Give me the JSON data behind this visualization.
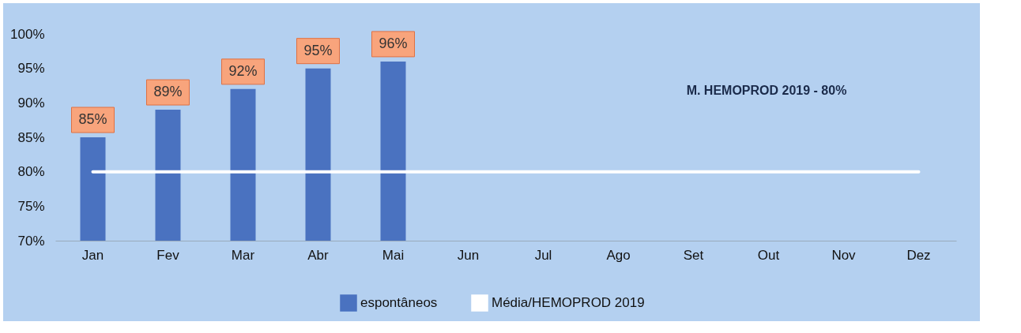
{
  "chart_data": {
    "type": "bar",
    "categories": [
      "Jan",
      "Fev",
      "Mar",
      "Abr",
      "Mai",
      "Jun",
      "Jul",
      "Ago",
      "Set",
      "Out",
      "Nov",
      "Dez"
    ],
    "series": [
      {
        "name": "espontâneos",
        "color": "#4a72c0",
        "values": [
          85,
          89,
          92,
          95,
          96,
          null,
          null,
          null,
          null,
          null,
          null,
          null
        ],
        "value_labels": [
          "85%",
          "89%",
          "92%",
          "95%",
          "96%",
          null,
          null,
          null,
          null,
          null,
          null,
          null
        ]
      },
      {
        "name": "Média/HEMOPROD 2019",
        "type": "line",
        "color": "#ffffff",
        "values": [
          80,
          80,
          80,
          80,
          80,
          80,
          80,
          80,
          80,
          80,
          80,
          80
        ]
      }
    ],
    "ylim": [
      70,
      100
    ],
    "yticks": [
      {
        "value": 70,
        "label": "70%"
      },
      {
        "value": 75,
        "label": "75%"
      },
      {
        "value": 80,
        "label": "80%"
      },
      {
        "value": 85,
        "label": "85%"
      },
      {
        "value": 90,
        "label": "90%"
      },
      {
        "value": 95,
        "label": "95%"
      },
      {
        "value": 100,
        "label": "100%"
      }
    ],
    "annotations": [
      "M. HEMOPROD 2019 - 80%"
    ],
    "legend": "bottom",
    "grid": false
  }
}
